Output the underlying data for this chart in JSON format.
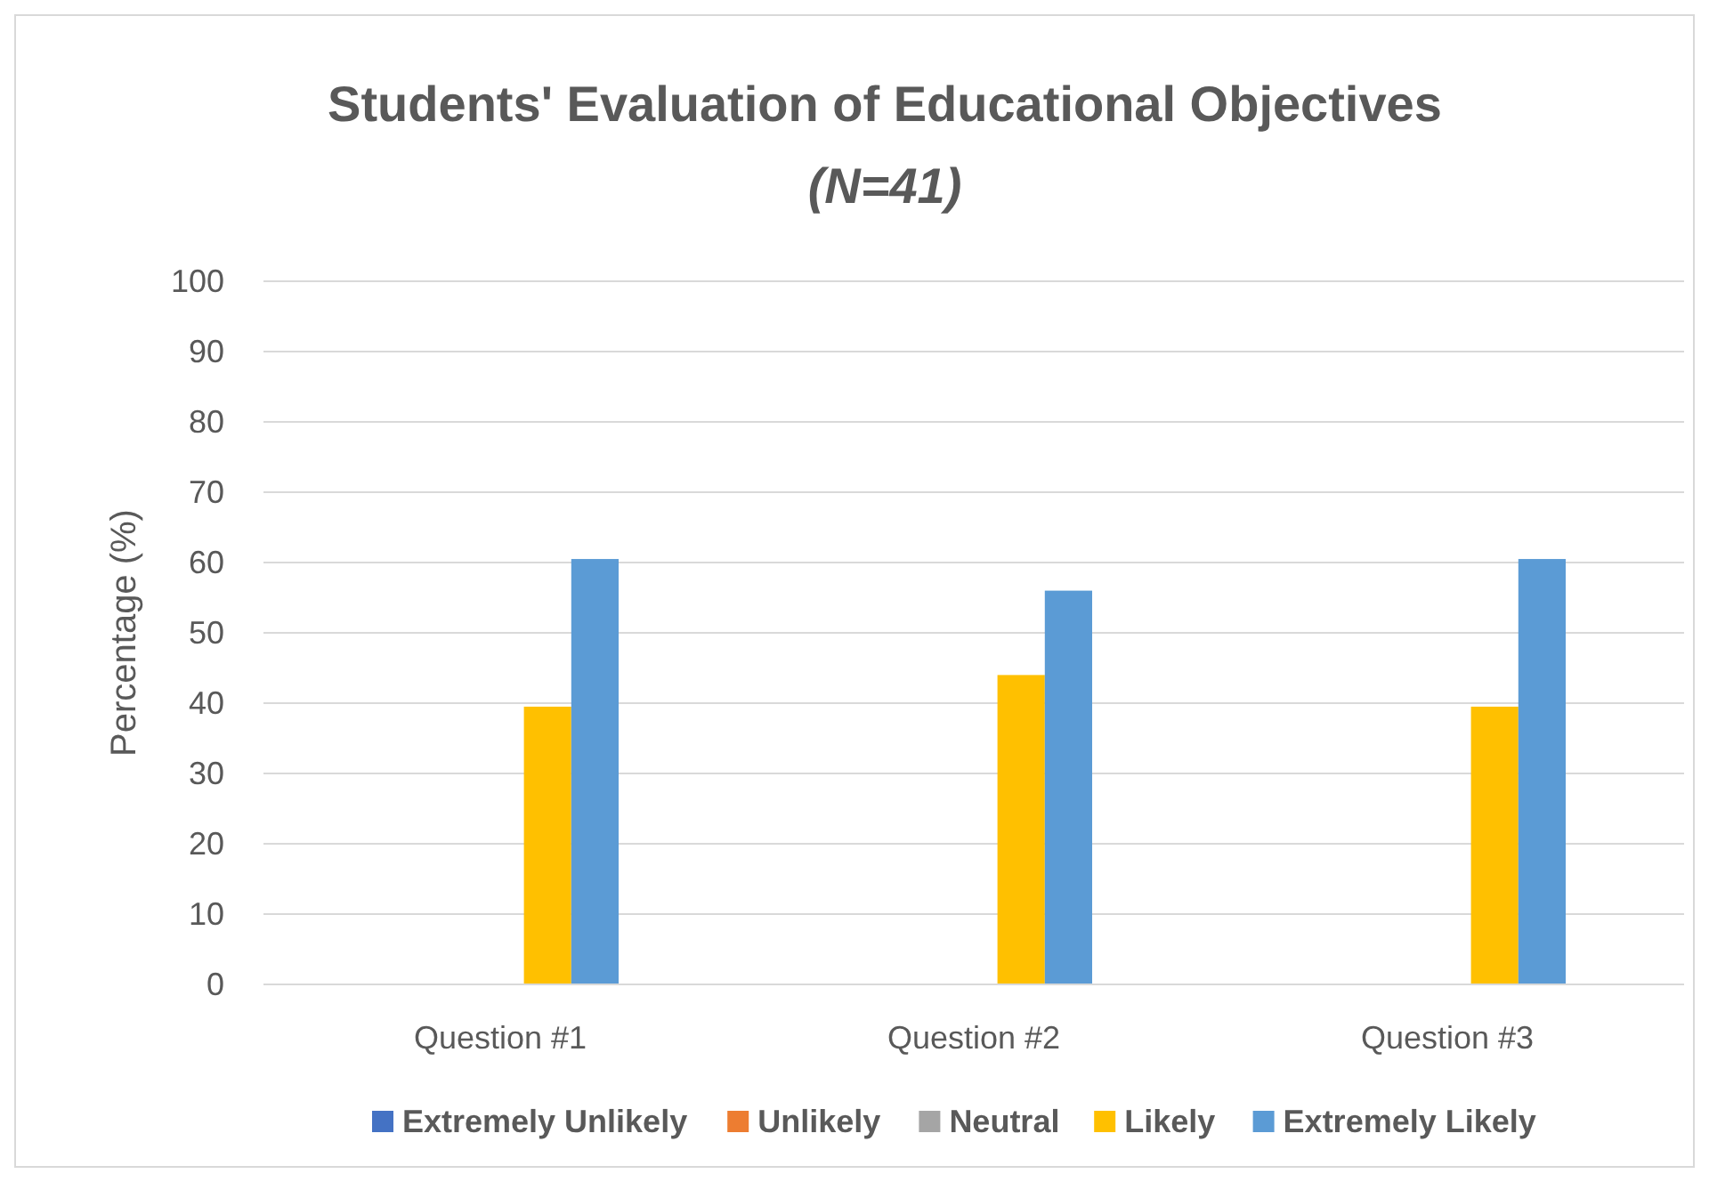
{
  "chart_data": {
    "type": "bar",
    "title": "Students' Evaluation of Educational Objectives",
    "subtitle": "(N=41)",
    "ylabel": "Percentage (%)",
    "categories": [
      "Question #1",
      "Question #2",
      "Question #3"
    ],
    "series": [
      {
        "name": "Extremely Unlikely",
        "color": "#4472c4",
        "values": [
          0,
          0,
          0
        ]
      },
      {
        "name": "Unlikely",
        "color": "#ed7d31",
        "values": [
          0,
          0,
          0
        ]
      },
      {
        "name": "Neutral",
        "color": "#a5a5a5",
        "values": [
          0,
          0,
          0
        ]
      },
      {
        "name": "Likely",
        "color": "#ffc000",
        "values": [
          39.5,
          44,
          39.5
        ]
      },
      {
        "name": "Extremely Likely",
        "color": "#5b9bd5",
        "values": [
          60.5,
          56,
          60.5
        ]
      }
    ],
    "ylim": [
      0,
      100
    ],
    "yticks": [
      0,
      10,
      20,
      30,
      40,
      50,
      60,
      70,
      80,
      90,
      100
    ],
    "grid": "y",
    "legend": "bottom"
  }
}
